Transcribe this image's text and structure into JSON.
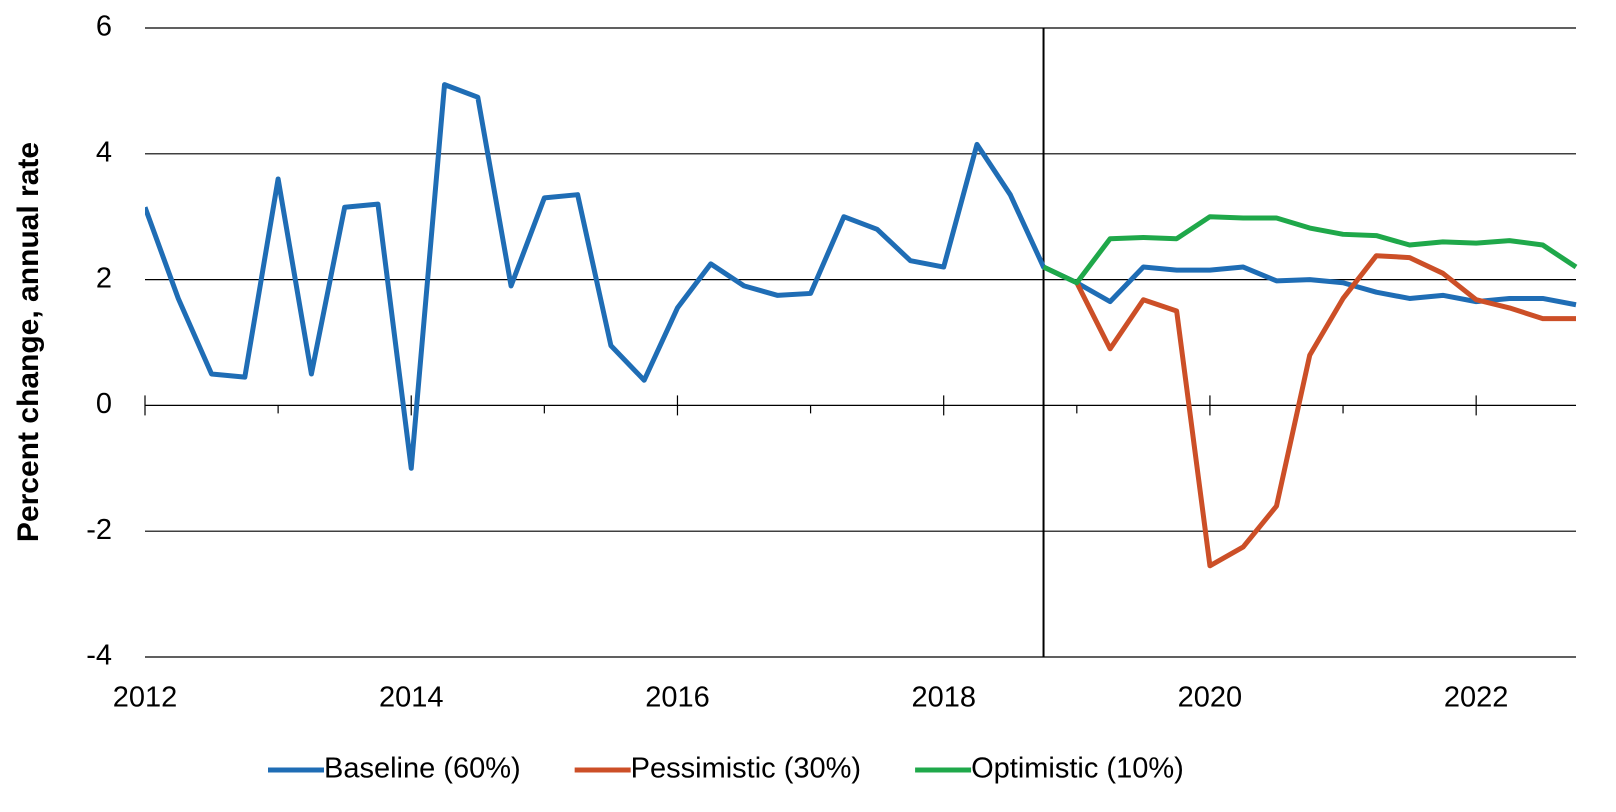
{
  "chart_data": {
    "type": "line",
    "y_label": "Percent change, annual rate",
    "x": [
      2012,
      2012.25,
      2012.5,
      2012.75,
      2013,
      2013.25,
      2013.5,
      2013.75,
      2014,
      2014.25,
      2014.5,
      2014.75,
      2015,
      2015.25,
      2015.5,
      2015.75,
      2016,
      2016.25,
      2016.5,
      2016.75,
      2017,
      2017.25,
      2017.5,
      2017.75,
      2018,
      2018.25,
      2018.5,
      2018.75,
      2019,
      2019.25,
      2019.5,
      2019.75,
      2020,
      2020.25,
      2020.5,
      2020.75,
      2021,
      2021.25,
      2021.5,
      2021.75,
      2022,
      2022.25,
      2022.5,
      2022.75
    ],
    "series": [
      {
        "name": "Baseline (60%)",
        "color": "#1f6db5",
        "values": [
          3.15,
          1.7,
          0.5,
          0.45,
          3.6,
          0.5,
          3.15,
          3.2,
          -1.0,
          5.1,
          4.9,
          1.9,
          3.3,
          3.35,
          0.95,
          0.4,
          1.55,
          2.25,
          1.9,
          1.75,
          1.78,
          3.0,
          2.8,
          2.3,
          2.2,
          4.15,
          3.35,
          2.2,
          1.95,
          1.65,
          2.2,
          2.15,
          2.15,
          2.2,
          1.98,
          2.0,
          1.95,
          1.8,
          1.7,
          1.75,
          1.65,
          1.7,
          1.7,
          1.6
        ]
      },
      {
        "name": "Pessimistic (30%)",
        "color": "#cc4f27",
        "values": [
          null,
          null,
          null,
          null,
          null,
          null,
          null,
          null,
          null,
          null,
          null,
          null,
          null,
          null,
          null,
          null,
          null,
          null,
          null,
          null,
          null,
          null,
          null,
          null,
          null,
          null,
          null,
          null,
          1.95,
          0.9,
          1.68,
          1.5,
          -2.55,
          -2.25,
          -1.6,
          0.8,
          1.7,
          2.38,
          2.35,
          2.1,
          1.68,
          1.55,
          1.38,
          1.38
        ]
      },
      {
        "name": "Optimistic (10%)",
        "color": "#1fa84a",
        "values": [
          null,
          null,
          null,
          null,
          null,
          null,
          null,
          null,
          null,
          null,
          null,
          null,
          null,
          null,
          null,
          null,
          null,
          null,
          null,
          null,
          null,
          null,
          null,
          null,
          null,
          null,
          null,
          2.2,
          1.95,
          2.65,
          2.67,
          2.65,
          3.0,
          2.98,
          2.98,
          2.82,
          2.72,
          2.7,
          2.55,
          2.6,
          2.58,
          2.62,
          2.55,
          2.2
        ]
      }
    ],
    "xlim": [
      2012,
      2022.75
    ],
    "xticks": [
      2012,
      2014,
      2016,
      2018,
      2020,
      2022
    ],
    "minor_xticks": [
      2013,
      2015,
      2017,
      2019,
      2021
    ],
    "ylim": [
      -4,
      6
    ],
    "yticks": [
      -4,
      -2,
      0,
      2,
      4,
      6
    ],
    "grid": true,
    "divider_x": 2018.75,
    "legend": "bottom"
  }
}
